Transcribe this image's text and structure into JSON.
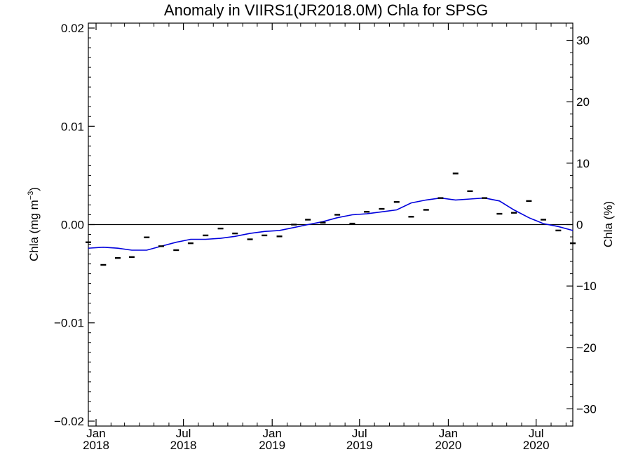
{
  "chart_data": {
    "type": "scatter",
    "title": "Anomaly in VIIRS1(JR2018.0M) Chla for SPSG",
    "ylabel_main": "Chla (mg m",
    "ylabel_sup": "−3",
    "ylabel_close": ")",
    "y2label": "Chla (%)",
    "x_range": [
      "2017-12-16",
      "2020-09-15"
    ],
    "ylim": [
      -0.0205,
      0.0205
    ],
    "y2lim": [
      -32.8,
      32.8
    ],
    "left_ticks": [
      {
        "value": 0.02,
        "label": "0.02"
      },
      {
        "value": 0.01,
        "label": "0.01"
      },
      {
        "value": 0.0,
        "label": "0.00"
      },
      {
        "value": -0.01,
        "label": "−0.01"
      },
      {
        "value": -0.02,
        "label": "−0.02"
      }
    ],
    "right_ticks": [
      {
        "value": 30,
        "label": "30"
      },
      {
        "value": 20,
        "label": "20"
      },
      {
        "value": 10,
        "label": "10"
      },
      {
        "value": 0,
        "label": "0"
      },
      {
        "value": -10,
        "label": "−10"
      },
      {
        "value": -20,
        "label": "−20"
      },
      {
        "value": -30,
        "label": "−30"
      }
    ],
    "x_ticks": [
      {
        "date": "2018-01-01",
        "month": "Jan",
        "year": "2018"
      },
      {
        "date": "2018-07-01",
        "month": "Jul",
        "year": "2018"
      },
      {
        "date": "2019-01-01",
        "month": "Jan",
        "year": "2019"
      },
      {
        "date": "2019-07-01",
        "month": "Jul",
        "year": "2019"
      },
      {
        "date": "2020-01-01",
        "month": "Jan",
        "year": "2020"
      },
      {
        "date": "2020-07-01",
        "month": "Jul",
        "year": "2020"
      }
    ],
    "x_minor_ticks": [
      "2018-02-01",
      "2018-03-01",
      "2018-04-01",
      "2018-05-01",
      "2018-06-01",
      "2018-08-01",
      "2018-09-01",
      "2018-10-01",
      "2018-11-01",
      "2018-12-01",
      "2019-02-01",
      "2019-03-01",
      "2019-04-01",
      "2019-05-01",
      "2019-06-01",
      "2019-08-01",
      "2019-09-01",
      "2019-10-01",
      "2019-11-01",
      "2019-12-01",
      "2020-02-01",
      "2020-03-01",
      "2020-04-01",
      "2020-05-01",
      "2020-06-01",
      "2020-08-01",
      "2020-09-01"
    ],
    "monthly_anomaly": {
      "name": "monthly",
      "color": "#000000",
      "points": [
        {
          "date": "2017-12-16",
          "value": -0.0018
        },
        {
          "date": "2018-01-16",
          "value": -0.0041
        },
        {
          "date": "2018-02-15",
          "value": -0.0034
        },
        {
          "date": "2018-03-16",
          "value": -0.0033
        },
        {
          "date": "2018-04-16",
          "value": -0.0013
        },
        {
          "date": "2018-05-16",
          "value": -0.0022
        },
        {
          "date": "2018-06-16",
          "value": -0.0026
        },
        {
          "date": "2018-07-16",
          "value": -0.0019
        },
        {
          "date": "2018-08-16",
          "value": -0.0011
        },
        {
          "date": "2018-09-16",
          "value": -0.0004
        },
        {
          "date": "2018-10-16",
          "value": -0.0009
        },
        {
          "date": "2018-11-16",
          "value": -0.0015
        },
        {
          "date": "2018-12-16",
          "value": -0.0011
        },
        {
          "date": "2019-01-16",
          "value": -0.0012
        },
        {
          "date": "2019-02-15",
          "value": 0.0
        },
        {
          "date": "2019-03-16",
          "value": 0.0005
        },
        {
          "date": "2019-04-16",
          "value": 0.0002
        },
        {
          "date": "2019-05-16",
          "value": 0.001
        },
        {
          "date": "2019-06-16",
          "value": 0.0001
        },
        {
          "date": "2019-07-16",
          "value": 0.0013
        },
        {
          "date": "2019-08-16",
          "value": 0.0016
        },
        {
          "date": "2019-09-16",
          "value": 0.0023
        },
        {
          "date": "2019-10-16",
          "value": 0.0008
        },
        {
          "date": "2019-11-16",
          "value": 0.0015
        },
        {
          "date": "2019-12-16",
          "value": 0.0027
        },
        {
          "date": "2020-01-16",
          "value": 0.0052
        },
        {
          "date": "2020-02-15",
          "value": 0.0034
        },
        {
          "date": "2020-03-16",
          "value": 0.0027
        },
        {
          "date": "2020-04-16",
          "value": 0.0011
        },
        {
          "date": "2020-05-16",
          "value": 0.0012
        },
        {
          "date": "2020-06-16",
          "value": 0.0024
        },
        {
          "date": "2020-07-16",
          "value": 0.0005
        },
        {
          "date": "2020-08-16",
          "value": -0.0006
        },
        {
          "date": "2020-09-15",
          "value": -0.0019
        }
      ]
    },
    "smoothed": {
      "name": "smoothed",
      "color": "#0000dd",
      "points": [
        {
          "date": "2017-12-16",
          "value": -0.0024
        },
        {
          "date": "2018-01-16",
          "value": -0.0023
        },
        {
          "date": "2018-02-15",
          "value": -0.0024
        },
        {
          "date": "2018-03-16",
          "value": -0.0026
        },
        {
          "date": "2018-04-16",
          "value": -0.0026
        },
        {
          "date": "2018-05-16",
          "value": -0.0022
        },
        {
          "date": "2018-06-16",
          "value": -0.0018
        },
        {
          "date": "2018-07-16",
          "value": -0.0015
        },
        {
          "date": "2018-08-16",
          "value": -0.0015
        },
        {
          "date": "2018-09-16",
          "value": -0.0014
        },
        {
          "date": "2018-10-16",
          "value": -0.0012
        },
        {
          "date": "2018-11-16",
          "value": -0.0009
        },
        {
          "date": "2018-12-16",
          "value": -0.0007
        },
        {
          "date": "2019-01-16",
          "value": -0.0006
        },
        {
          "date": "2019-02-15",
          "value": -0.0003
        },
        {
          "date": "2019-03-16",
          "value": 0.0
        },
        {
          "date": "2019-04-16",
          "value": 0.0003
        },
        {
          "date": "2019-05-16",
          "value": 0.0007
        },
        {
          "date": "2019-06-16",
          "value": 0.001
        },
        {
          "date": "2019-07-16",
          "value": 0.0011
        },
        {
          "date": "2019-08-16",
          "value": 0.0013
        },
        {
          "date": "2019-09-16",
          "value": 0.0015
        },
        {
          "date": "2019-10-16",
          "value": 0.0022
        },
        {
          "date": "2019-11-16",
          "value": 0.0025
        },
        {
          "date": "2019-12-16",
          "value": 0.0027
        },
        {
          "date": "2020-01-16",
          "value": 0.0025
        },
        {
          "date": "2020-02-15",
          "value": 0.0026
        },
        {
          "date": "2020-03-16",
          "value": 0.0027
        },
        {
          "date": "2020-04-16",
          "value": 0.0024
        },
        {
          "date": "2020-05-16",
          "value": 0.0015
        },
        {
          "date": "2020-06-16",
          "value": 0.0007
        },
        {
          "date": "2020-07-16",
          "value": 0.0001
        },
        {
          "date": "2020-08-16",
          "value": -0.0002
        },
        {
          "date": "2020-09-15",
          "value": -0.0006
        }
      ]
    },
    "reference_line": {
      "value": 0.0,
      "color": "#000000"
    },
    "grid": false
  }
}
